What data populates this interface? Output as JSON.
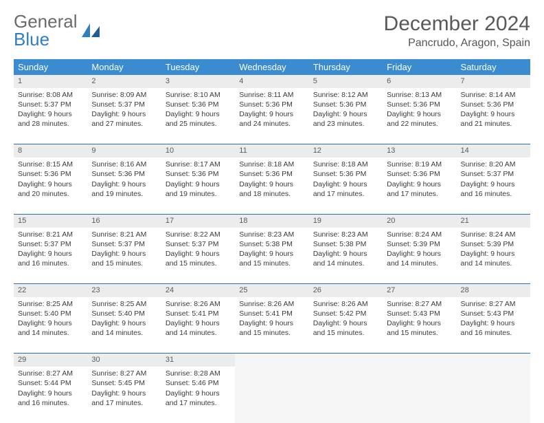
{
  "brand": {
    "word1": "General",
    "word2": "Blue"
  },
  "title": "December 2024",
  "location": "Pancrudo, Aragon, Spain",
  "header_bg": "#3a8bd0",
  "divider_color": "#2f6fa8",
  "daynum_bg": "#ececec",
  "empty_bg": "#f5f5f5",
  "text_color": "#3a3a3a",
  "font_family": "Arial",
  "dayHeaders": [
    "Sunday",
    "Monday",
    "Tuesday",
    "Wednesday",
    "Thursday",
    "Friday",
    "Saturday"
  ],
  "weeks": [
    [
      {
        "n": "1",
        "sr": "8:08 AM",
        "ss": "5:37 PM",
        "dl": "9 hours and 28 minutes."
      },
      {
        "n": "2",
        "sr": "8:09 AM",
        "ss": "5:37 PM",
        "dl": "9 hours and 27 minutes."
      },
      {
        "n": "3",
        "sr": "8:10 AM",
        "ss": "5:36 PM",
        "dl": "9 hours and 25 minutes."
      },
      {
        "n": "4",
        "sr": "8:11 AM",
        "ss": "5:36 PM",
        "dl": "9 hours and 24 minutes."
      },
      {
        "n": "5",
        "sr": "8:12 AM",
        "ss": "5:36 PM",
        "dl": "9 hours and 23 minutes."
      },
      {
        "n": "6",
        "sr": "8:13 AM",
        "ss": "5:36 PM",
        "dl": "9 hours and 22 minutes."
      },
      {
        "n": "7",
        "sr": "8:14 AM",
        "ss": "5:36 PM",
        "dl": "9 hours and 21 minutes."
      }
    ],
    [
      {
        "n": "8",
        "sr": "8:15 AM",
        "ss": "5:36 PM",
        "dl": "9 hours and 20 minutes."
      },
      {
        "n": "9",
        "sr": "8:16 AM",
        "ss": "5:36 PM",
        "dl": "9 hours and 19 minutes."
      },
      {
        "n": "10",
        "sr": "8:17 AM",
        "ss": "5:36 PM",
        "dl": "9 hours and 19 minutes."
      },
      {
        "n": "11",
        "sr": "8:18 AM",
        "ss": "5:36 PM",
        "dl": "9 hours and 18 minutes."
      },
      {
        "n": "12",
        "sr": "8:18 AM",
        "ss": "5:36 PM",
        "dl": "9 hours and 17 minutes."
      },
      {
        "n": "13",
        "sr": "8:19 AM",
        "ss": "5:36 PM",
        "dl": "9 hours and 17 minutes."
      },
      {
        "n": "14",
        "sr": "8:20 AM",
        "ss": "5:37 PM",
        "dl": "9 hours and 16 minutes."
      }
    ],
    [
      {
        "n": "15",
        "sr": "8:21 AM",
        "ss": "5:37 PM",
        "dl": "9 hours and 16 minutes."
      },
      {
        "n": "16",
        "sr": "8:21 AM",
        "ss": "5:37 PM",
        "dl": "9 hours and 15 minutes."
      },
      {
        "n": "17",
        "sr": "8:22 AM",
        "ss": "5:37 PM",
        "dl": "9 hours and 15 minutes."
      },
      {
        "n": "18",
        "sr": "8:23 AM",
        "ss": "5:38 PM",
        "dl": "9 hours and 15 minutes."
      },
      {
        "n": "19",
        "sr": "8:23 AM",
        "ss": "5:38 PM",
        "dl": "9 hours and 14 minutes."
      },
      {
        "n": "20",
        "sr": "8:24 AM",
        "ss": "5:39 PM",
        "dl": "9 hours and 14 minutes."
      },
      {
        "n": "21",
        "sr": "8:24 AM",
        "ss": "5:39 PM",
        "dl": "9 hours and 14 minutes."
      }
    ],
    [
      {
        "n": "22",
        "sr": "8:25 AM",
        "ss": "5:40 PM",
        "dl": "9 hours and 14 minutes."
      },
      {
        "n": "23",
        "sr": "8:25 AM",
        "ss": "5:40 PM",
        "dl": "9 hours and 14 minutes."
      },
      {
        "n": "24",
        "sr": "8:26 AM",
        "ss": "5:41 PM",
        "dl": "9 hours and 14 minutes."
      },
      {
        "n": "25",
        "sr": "8:26 AM",
        "ss": "5:41 PM",
        "dl": "9 hours and 15 minutes."
      },
      {
        "n": "26",
        "sr": "8:26 AM",
        "ss": "5:42 PM",
        "dl": "9 hours and 15 minutes."
      },
      {
        "n": "27",
        "sr": "8:27 AM",
        "ss": "5:43 PM",
        "dl": "9 hours and 15 minutes."
      },
      {
        "n": "28",
        "sr": "8:27 AM",
        "ss": "5:43 PM",
        "dl": "9 hours and 16 minutes."
      }
    ],
    [
      {
        "n": "29",
        "sr": "8:27 AM",
        "ss": "5:44 PM",
        "dl": "9 hours and 16 minutes."
      },
      {
        "n": "30",
        "sr": "8:27 AM",
        "ss": "5:45 PM",
        "dl": "9 hours and 17 minutes."
      },
      {
        "n": "31",
        "sr": "8:28 AM",
        "ss": "5:46 PM",
        "dl": "9 hours and 17 minutes."
      },
      null,
      null,
      null,
      null
    ]
  ],
  "labels": {
    "sunrise": "Sunrise:",
    "sunset": "Sunset:",
    "daylight": "Daylight:"
  }
}
